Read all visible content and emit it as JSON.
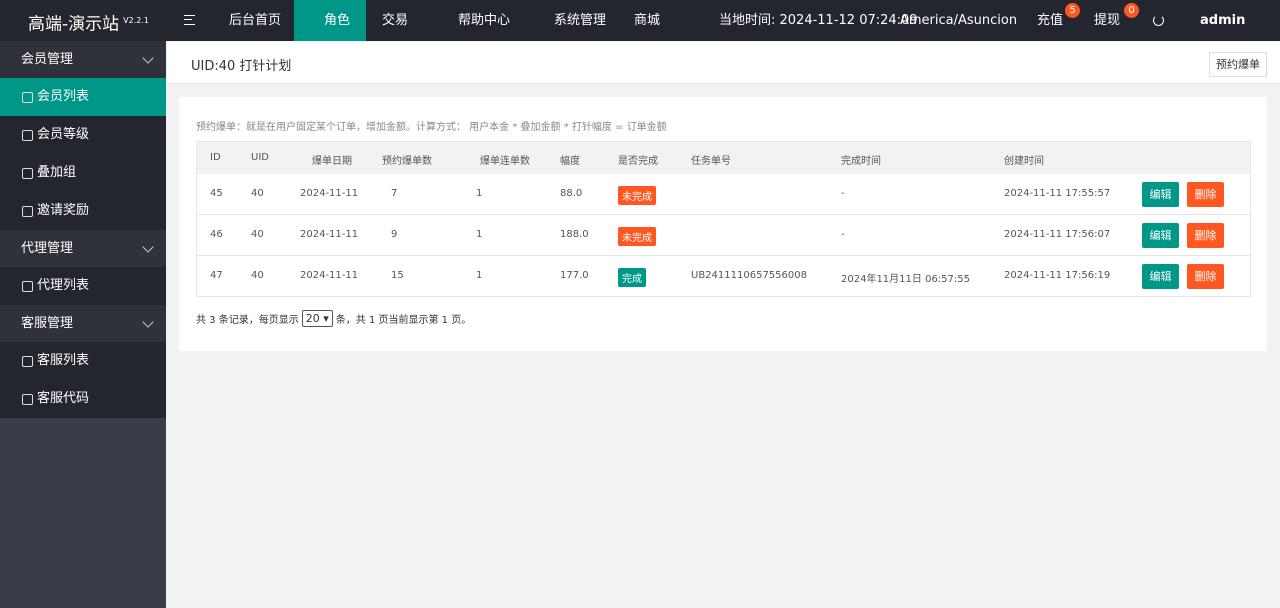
{
  "header": {
    "logo": "高端-演示站",
    "version": "V2.2.1",
    "nav": [
      "后台首页",
      "角色",
      "交易",
      "帮助中心",
      "系统管理",
      "商城"
    ],
    "active_nav": 1,
    "time": "当地时间: 2024-11-12 07:24:09",
    "timezone": "America/Asuncion",
    "recharge": {
      "label": "充值",
      "badge": "5"
    },
    "withdraw": {
      "label": "提现",
      "badge": "0"
    },
    "user": "admin"
  },
  "sidebar": [
    {
      "title": "会员管理",
      "items": [
        "会员列表",
        "会员等级",
        "叠加组",
        "邀请奖励"
      ]
    },
    {
      "title": "代理管理",
      "items": [
        "代理列表"
      ]
    },
    {
      "title": "客服管理",
      "items": [
        "客服列表",
        "客服代码"
      ]
    }
  ],
  "sidebar_active": [
    0,
    0
  ],
  "breadcrumb": {
    "title": "UID:40 打针计划",
    "button": "预约爆单"
  },
  "note": "预约爆单：就是在用户固定某个订单，增加金额。计算方式： 用户本金 * 叠加金额 * 打针幅度 = 订单金额",
  "table": {
    "headers": [
      "ID",
      "UID",
      "爆单日期",
      "预约爆单数",
      "爆单连单数",
      "幅度",
      "是否完成",
      "任务单号",
      "完成时间",
      "创建时间"
    ],
    "rows": [
      [
        "45",
        "40",
        "2024-11-11",
        "7",
        "1",
        "88.0",
        "未完成",
        null,
        "-",
        "2024-11-11 17:55:57"
      ],
      [
        "46",
        "40",
        "2024-11-11",
        "9",
        "1",
        "188.0",
        "未完成",
        null,
        "-",
        "2024-11-11 17:56:07"
      ],
      [
        "47",
        "40",
        "2024-11-11",
        "15",
        "1",
        "177.0",
        "完成",
        "UB2411110657556008",
        "2024年11月11日 06:57:55",
        "2024-11-11 17:56:19"
      ]
    ],
    "status_colors": [
      "#ff5722",
      "#ff5722",
      "#009688"
    ],
    "actions": [
      "编辑",
      "删除"
    ]
  },
  "pagination": {
    "prefix": "共 3 条记录，每页显示",
    "page_size": "20",
    "suffix": "条，共 1 页当前显示第 1 页。"
  }
}
